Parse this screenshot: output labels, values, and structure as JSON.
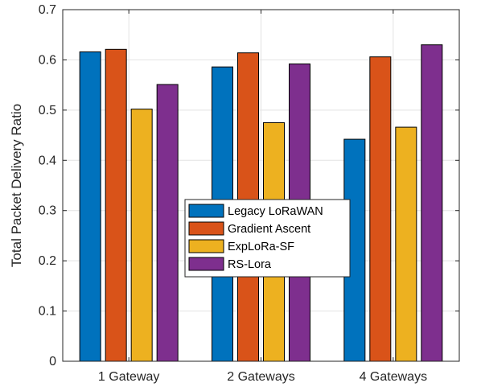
{
  "chart_data": {
    "type": "bar",
    "title": "",
    "xlabel": "",
    "ylabel": "Total Packet Delivery Ratio",
    "categories": [
      "1 Gateway",
      "2 Gateways",
      "4 Gateways"
    ],
    "ylim": [
      0,
      0.7
    ],
    "yticks": [
      "0",
      "0.1",
      "0.2",
      "0.3",
      "0.4",
      "0.5",
      "0.6",
      "0.7"
    ],
    "grid": true,
    "legend_position": "center",
    "series": [
      {
        "name": "Legacy LoRaWAN",
        "color": "#0072BD",
        "values": [
          0.616,
          0.586,
          0.442
        ]
      },
      {
        "name": "Gradient Ascent",
        "color": "#D95319",
        "values": [
          0.621,
          0.614,
          0.606
        ]
      },
      {
        "name": "ExpLoRa-SF",
        "color": "#EDB120",
        "values": [
          0.502,
          0.475,
          0.466
        ]
      },
      {
        "name": "RS-Lora",
        "color": "#7E2F8E",
        "values": [
          0.551,
          0.592,
          0.63
        ]
      }
    ]
  }
}
